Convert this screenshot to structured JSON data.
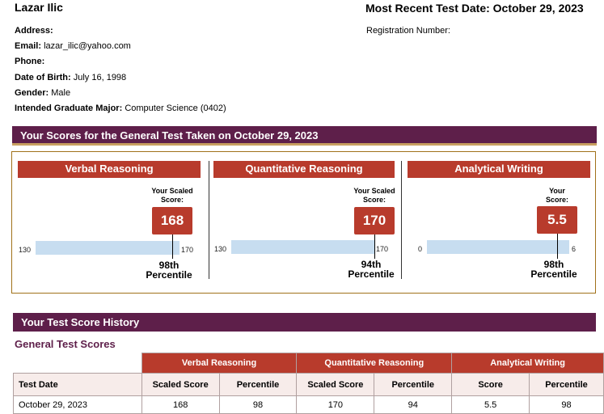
{
  "header": {
    "name": "Lazar Ilic",
    "most_recent_test_date": "Most Recent Test Date: October 29, 2023",
    "registration_number_label": "Registration Number:"
  },
  "info": [
    {
      "label": "Address:",
      "value": ""
    },
    {
      "label": "Email:",
      "value": "lazar_ilic@yahoo.com"
    },
    {
      "label": "Phone:",
      "value": ""
    },
    {
      "label": "Date of Birth:",
      "value": "July 16, 1998"
    },
    {
      "label": "Gender:",
      "value": "Male"
    },
    {
      "label": "Intended Graduate Major:",
      "value": "Computer Science (0402)"
    }
  ],
  "scores_section": {
    "title": "Your Scores for the General Test Taken on October 29, 2023",
    "sections": [
      {
        "title": "Verbal Reasoning",
        "scaled_label_1": "Your Scaled",
        "scaled_label_2": "Score:",
        "score": "168",
        "min": "130",
        "max": "170",
        "percentile": "98th",
        "percentile_label": "Percentile",
        "fraction": 0.95
      },
      {
        "title": "Quantitative Reasoning",
        "scaled_label_1": "Your Scaled",
        "scaled_label_2": "Score:",
        "score": "170",
        "min": "130",
        "max": "170",
        "percentile": "94th",
        "percentile_label": "Percentile",
        "fraction": 1.0
      },
      {
        "title": "Analytical Writing",
        "scaled_label_1": "Your",
        "scaled_label_2": "Score:",
        "score": "5.5",
        "min": "0",
        "max": "6",
        "percentile": "98th",
        "percentile_label": "Percentile",
        "fraction": 0.917
      }
    ]
  },
  "history": {
    "title": "Your Test Score History",
    "subtitle": "General Test Scores",
    "group_headers": [
      "Verbal Reasoning",
      "Quantitative Reasoning",
      "Analytical Writing"
    ],
    "sub_headers": [
      "Test Date",
      "Scaled Score",
      "Percentile",
      "Scaled Score",
      "Percentile",
      "Score",
      "Percentile"
    ],
    "rows": [
      [
        "October 29, 2023",
        "168",
        "98",
        "170",
        "94",
        "5.5",
        "98"
      ]
    ]
  },
  "colors": {
    "section_bar": "#5e1f4a",
    "accent_red": "#b83b2c",
    "bar_blue": "#c7ddf0",
    "gold_border": "#a0711a"
  }
}
